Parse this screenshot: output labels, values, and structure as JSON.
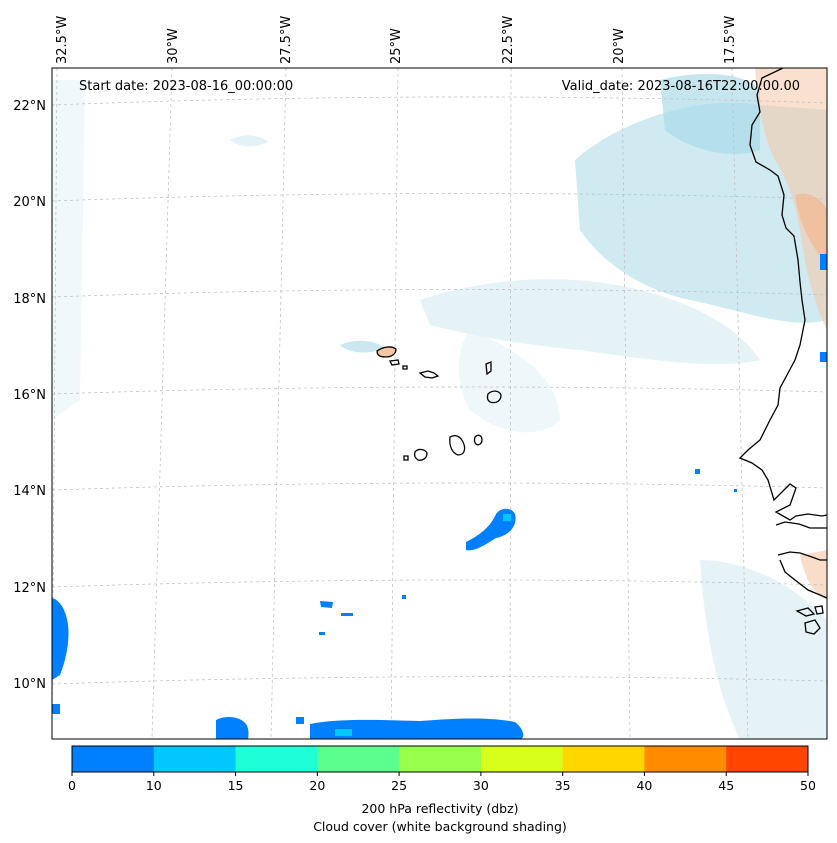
{
  "map": {
    "start_text": "Start date: 2023-08-16_00:00:00",
    "valid_text": "Valid_date: 2023-08-16T22:00:00.00",
    "lon_labels": [
      "32.5°W",
      "30°W",
      "27.5°W",
      "25°W",
      "22.5°W",
      "20°W",
      "17.5°W"
    ],
    "lat_labels": [
      "22°N",
      "20°N",
      "18°N",
      "16°N",
      "14°N",
      "12°N",
      "10°N"
    ],
    "coastline_color": "#000000",
    "land_warm_color": "#f5c6a5",
    "cloud_color": "#a8d8e6"
  },
  "colorbar": {
    "ticks": [
      "0",
      "10",
      "15",
      "20",
      "25",
      "30",
      "35",
      "40",
      "45",
      "50"
    ],
    "colors": [
      "#0080ff",
      "#00c8ff",
      "#1effd8",
      "#5aff8e",
      "#98ff4c",
      "#d8ff1c",
      "#ffd700",
      "#ff8c00",
      "#ff4500"
    ],
    "label_line1": "200 hPa reflectivity (dbz)",
    "label_line2": "Cloud cover (white background shading)"
  }
}
